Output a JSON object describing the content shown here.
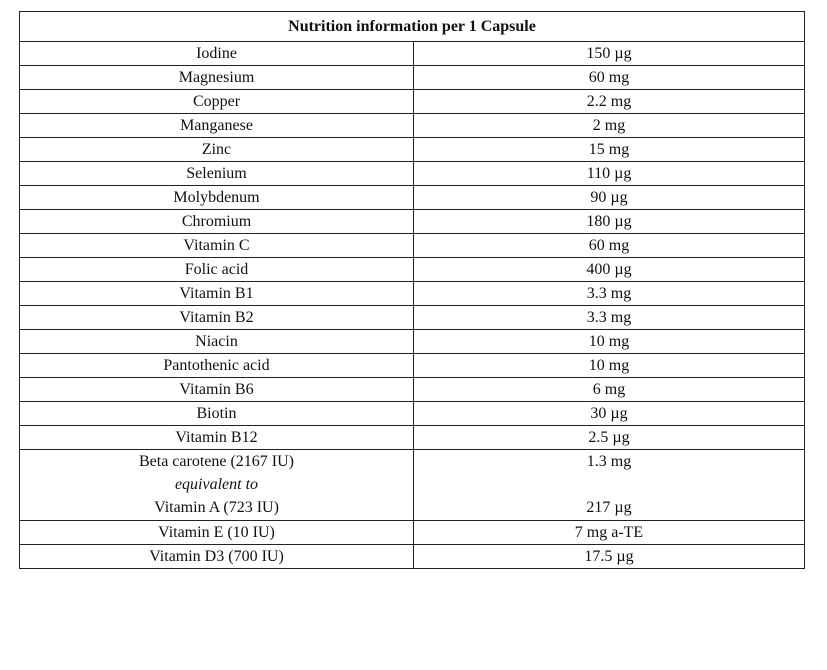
{
  "table": {
    "title": "Nutrition information per 1 Capsule",
    "rows": [
      {
        "name": "Iodine",
        "value": "150 µg"
      },
      {
        "name": "Magnesium",
        "value": "60 mg"
      },
      {
        "name": "Copper",
        "value": "2.2 mg"
      },
      {
        "name": "Manganese",
        "value": "2 mg"
      },
      {
        "name": "Zinc",
        "value": "15 mg"
      },
      {
        "name": "Selenium",
        "value": "110 µg"
      },
      {
        "name": "Molybdenum",
        "value": "90 µg"
      },
      {
        "name": "Chromium",
        "value": "180 µg"
      },
      {
        "name": "Vitamin C",
        "value": "60 mg"
      },
      {
        "name": "Folic acid",
        "value": "400 µg"
      },
      {
        "name": "Vitamin B1",
        "value": "3.3 mg"
      },
      {
        "name": "Vitamin B2",
        "value": "3.3 mg"
      },
      {
        "name": "Niacin",
        "value": "10 mg"
      },
      {
        "name": "Pantothenic acid",
        "value": "10 mg"
      },
      {
        "name": "Vitamin B6",
        "value": "6 mg"
      },
      {
        "name": "Biotin",
        "value": "30 µg"
      },
      {
        "name": "Vitamin B12",
        "value": "2.5 µg"
      }
    ],
    "beta_row": {
      "name_line1": "Beta carotene (2167 IU)",
      "name_line2": "equivalent to",
      "name_line3": "Vitamin A (723 IU)",
      "value_line1": "1.3 mg",
      "value_line3": "217 µg"
    },
    "tail_rows": [
      {
        "name": "Vitamin E (10 IU)",
        "value": "7 mg a-TE"
      },
      {
        "name": "Vitamin D3 (700 IU)",
        "value": "17.5 µg"
      }
    ]
  }
}
